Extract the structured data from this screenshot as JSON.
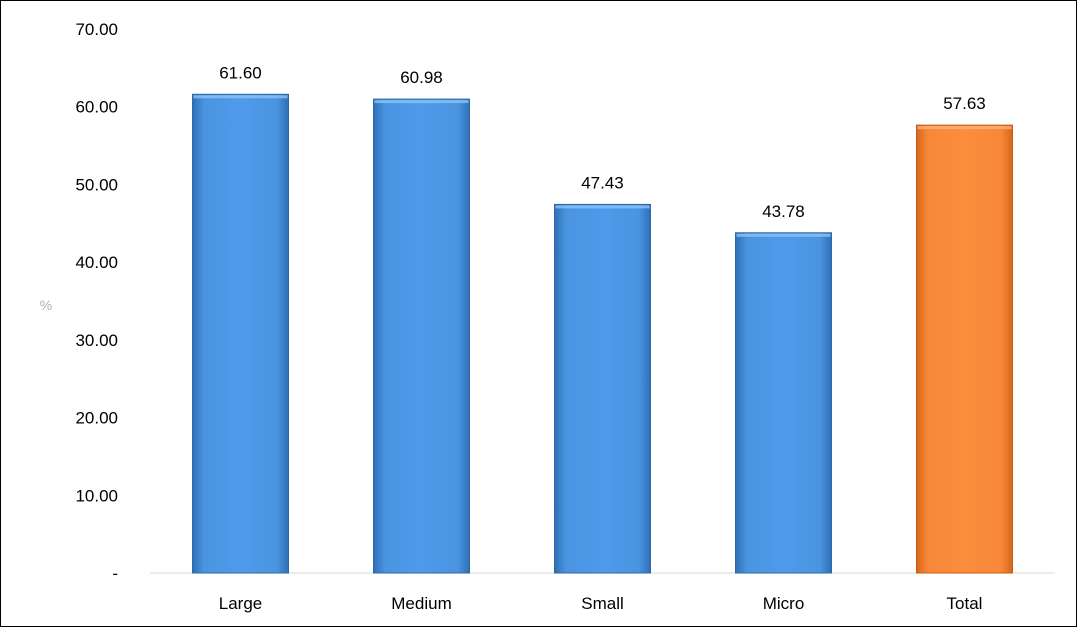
{
  "chart_data": {
    "type": "bar",
    "categories": [
      "Large",
      "Medium",
      "Small",
      "Micro",
      "Total"
    ],
    "values": [
      61.6,
      60.98,
      47.43,
      43.78,
      57.63
    ],
    "data_labels": [
      "61.60",
      "60.98",
      "47.43",
      "43.78",
      "57.63"
    ],
    "ylabel": "%",
    "ylim": [
      0,
      70
    ],
    "yticks": [
      0,
      10,
      20,
      30,
      40,
      50,
      60,
      70
    ],
    "ytick_labels": [
      "-",
      "10.00",
      "20.00",
      "30.00",
      "40.00",
      "50.00",
      "60.00",
      "70.00"
    ],
    "grid": false,
    "legend": "none",
    "bar_colors": [
      "#4a90d9",
      "#4a90d9",
      "#4a90d9",
      "#4a90d9",
      "#f5822f"
    ]
  }
}
